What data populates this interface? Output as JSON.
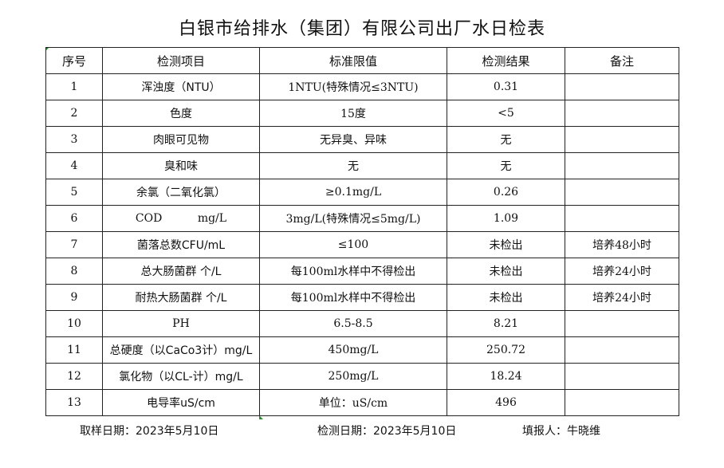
{
  "title": "白银市给排水（集团）有限公司出厂水日检表",
  "table": {
    "headers": [
      "序号",
      "检测项目",
      "标准限值",
      "检测结果",
      "备注"
    ],
    "rows": [
      [
        "1",
        "浑浊度（NTU）",
        "1NTU(特殊情况≤3NTU)",
        "0.31",
        ""
      ],
      [
        "2",
        "色度",
        "15度",
        "<5",
        ""
      ],
      [
        "3",
        "肉眼可见物",
        "无异臭、异味",
        "无",
        ""
      ],
      [
        "4",
        "臭和味",
        "无",
        "无",
        ""
      ],
      [
        "5",
        "余氯（二氧化氯）",
        "≥0.1mg/L",
        "0.26",
        ""
      ],
      [
        "6",
        "COD          mg/L",
        "3mg/L(特殊情况≤5mg/L)",
        "1.09",
        ""
      ],
      [
        "7",
        "菌落总数CFU/mL",
        "≤100",
        "未检出",
        "培养48小时"
      ],
      [
        "8",
        "总大肠菌群 个/L",
        "每100ml水样中不得检出",
        "未检出",
        "培养24小时"
      ],
      [
        "9",
        "耐热大肠菌群 个/L",
        "每100ml水样中不得检出",
        "未检出",
        "培养24小时"
      ],
      [
        "10",
        "PH",
        "6.5-8.5",
        "8.21",
        ""
      ],
      [
        "11",
        "总硬度（以CaCo3计）mg/L",
        "450mg/L",
        "250.72",
        ""
      ],
      [
        "12",
        "氯化物（以CL-计）mg/L",
        "250mg/L",
        "18.24",
        ""
      ],
      [
        "13",
        "电导率uS/cm",
        "单位：uS/cm",
        "496",
        ""
      ]
    ]
  },
  "footer": {
    "sampling_date": "取样日期：2023年5月10日",
    "test_date": "检测日期：2023年5月10日",
    "reporter": "填报人：牛晓维"
  }
}
